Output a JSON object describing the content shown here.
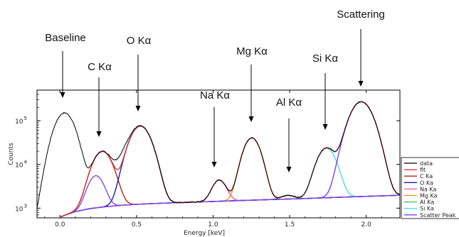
{
  "chart_data": {
    "type": "line",
    "xlabel": "Energy [keV]",
    "ylabel": "Counts",
    "yscale": "log",
    "xlim": [
      -0.15,
      2.22
    ],
    "ylim": [
      600,
      500000
    ],
    "x_ticks": [
      0.0,
      0.5,
      1.0,
      1.5,
      2.0
    ],
    "x_tick_labels": [
      "0.0",
      "0.5",
      "1.0",
      "1.5",
      "2.0"
    ],
    "y_ticks": [
      1000,
      10000,
      100000
    ],
    "y_tick_labels": [
      {
        "base": "10",
        "exp": "3"
      },
      {
        "base": "10",
        "exp": "4"
      },
      {
        "base": "10",
        "exp": "5"
      }
    ],
    "legend_position": "right",
    "legend": [
      {
        "label": "data",
        "color": "#000000"
      },
      {
        "label": "fit",
        "color": "#d62728"
      },
      {
        "label": "C Ka",
        "color": "#b22222"
      },
      {
        "label": "O Ka",
        "color": "#1a1aa6"
      },
      {
        "label": "Na Ka",
        "color": "#ff4fa8"
      },
      {
        "label": "Mg Ka",
        "color": "#ff8c1a"
      },
      {
        "label": "Al Ka",
        "color": "#2ecc40"
      },
      {
        "label": "Si Ka",
        "color": "#40e0e0"
      },
      {
        "label": "Scatter Peak",
        "color": "#7a3ff2"
      }
    ],
    "annotations": [
      {
        "text": "Baseline",
        "x": 0.03,
        "y": 120000
      },
      {
        "text": "C Kα",
        "x": 0.28,
        "y": 18000
      },
      {
        "text": "O Kα",
        "x": 0.52,
        "y": 60000
      },
      {
        "text": "Na Kα",
        "x": 1.04,
        "y": 5500
      },
      {
        "text": "Mg Kα",
        "x": 1.26,
        "y": 50000
      },
      {
        "text": "Al Kα",
        "x": 1.49,
        "y": 3000
      },
      {
        "text": "Si Kα",
        "x": 1.74,
        "y": 30000
      },
      {
        "text": "Scattering",
        "x": 1.97,
        "y": 300000
      }
    ],
    "background": {
      "x": [
        -0.1,
        0.0,
        0.1,
        0.2,
        0.3,
        0.4,
        0.5,
        0.6,
        0.8,
        1.0,
        1.2,
        1.4,
        1.6,
        1.8,
        2.0,
        2.2
      ],
      "y": [
        300,
        620,
        830,
        980,
        1080,
        1160,
        1220,
        1270,
        1350,
        1420,
        1500,
        1580,
        1660,
        1760,
        1860,
        1960
      ]
    },
    "peaks": [
      {
        "name": "C Ka",
        "color": "#b22222",
        "center": 0.277,
        "sigma": 0.055,
        "amplitude": 18800
      },
      {
        "name": "O Ka",
        "color": "#1a1aa6",
        "center": 0.525,
        "sigma": 0.058,
        "amplitude": 74000
      },
      {
        "name": "Na Ka",
        "color": "#ff4fa8",
        "center": 1.04,
        "sigma": 0.04,
        "amplitude": 2950
      },
      {
        "name": "Mg Ka",
        "color": "#ff8c1a",
        "center": 1.253,
        "sigma": 0.047,
        "amplitude": 39000
      },
      {
        "name": "Al Ka",
        "color": "#2ecc40",
        "center": 1.487,
        "sigma": 0.04,
        "amplitude": 350
      },
      {
        "name": "Si Ka",
        "color": "#40e0e0",
        "center": 1.74,
        "sigma": 0.052,
        "amplitude": 22000
      },
      {
        "name": "Scatter Peak",
        "color": "#7a3ff2",
        "center": 1.968,
        "sigma": 0.062,
        "amplitude": 270000
      }
    ],
    "extra_small_peak": {
      "center": 0.235,
      "sigma": 0.045,
      "amplitude": 4500
    },
    "data_baseline_peak": {
      "center": 0.03,
      "sigma": 0.055,
      "amplitude": 150000
    },
    "data_shoulder": {
      "center": 0.42,
      "sigma": 0.05,
      "amplitude": 9000
    }
  }
}
